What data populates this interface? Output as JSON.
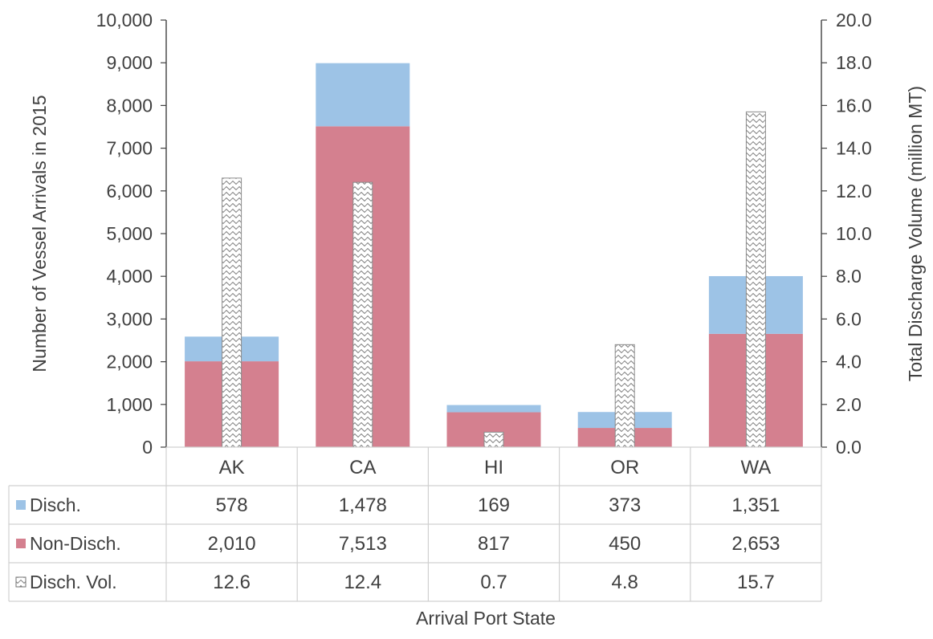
{
  "chart_data": {
    "type": "bar",
    "categories": [
      "AK",
      "CA",
      "HI",
      "OR",
      "WA"
    ],
    "series": [
      {
        "name": "Disch.",
        "key": "disch",
        "axis": "left",
        "color": "#9dc3e6",
        "values": [
          578,
          1478,
          169,
          373,
          1351
        ],
        "labels": [
          "578",
          "1,478",
          "169",
          "373",
          "1,351"
        ]
      },
      {
        "name": "Non-Disch.",
        "key": "nondisch",
        "axis": "left",
        "color": "#d4808f",
        "values": [
          2010,
          7513,
          817,
          450,
          2653
        ],
        "labels": [
          "2,010",
          "7,513",
          "817",
          "450",
          "2,653"
        ]
      },
      {
        "name": "Disch. Vol.",
        "key": "vol",
        "axis": "right",
        "color": "#ffffff",
        "values": [
          12.6,
          12.4,
          0.7,
          4.8,
          15.7
        ],
        "labels": [
          "12.6",
          "12.4",
          "0.7",
          "4.8",
          "15.7"
        ]
      }
    ],
    "ylabel": "Number of Vessel Arrivals in 2015",
    "y2label": "Total Discharge Volume (million MT)",
    "xlabel": "Arrival Port State",
    "ylim": [
      0,
      10000
    ],
    "y2lim": [
      0,
      20
    ],
    "yticks": [
      "0",
      "1,000",
      "2,000",
      "3,000",
      "4,000",
      "5,000",
      "6,000",
      "7,000",
      "8,000",
      "9,000",
      "10,000"
    ],
    "y2ticks": [
      "0.0",
      "2.0",
      "4.0",
      "6.0",
      "8.0",
      "10.0",
      "12.0",
      "14.0",
      "16.0",
      "18.0",
      "20.0"
    ],
    "grid": false,
    "stacked": true,
    "legend": "data table"
  }
}
